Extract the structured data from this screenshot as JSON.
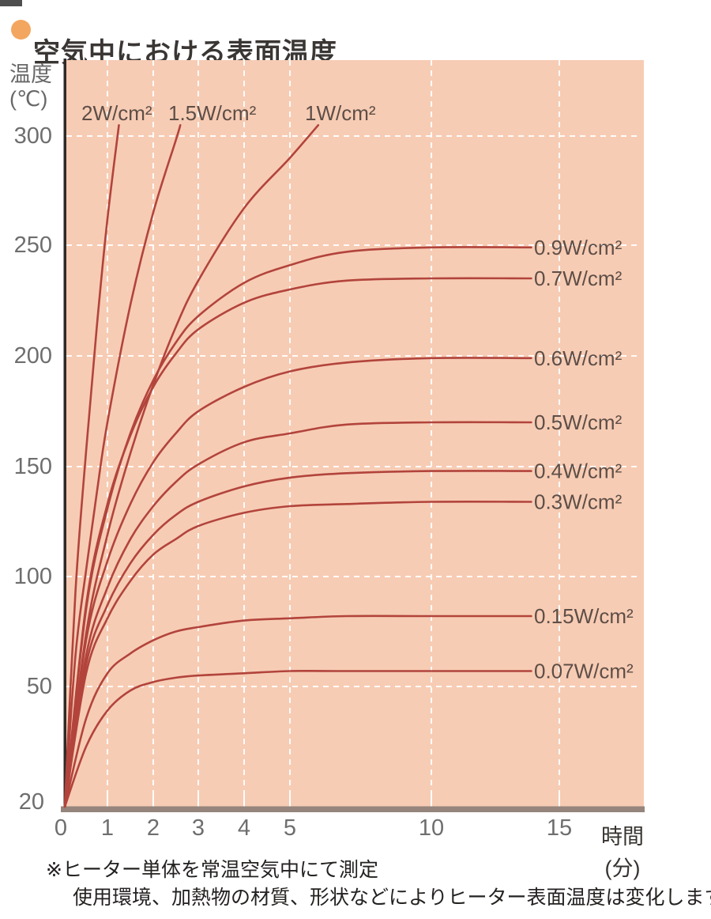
{
  "title": {
    "text": "空気中における表面温度",
    "bullet_color": "#f3a660"
  },
  "y_axis": {
    "unit_line1": "温度",
    "unit_line2": "(℃)",
    "ticks": [
      300,
      250,
      200,
      150,
      100,
      50,
      20
    ]
  },
  "x_axis": {
    "ticks": [
      0,
      1,
      2,
      3,
      4,
      5,
      10,
      15
    ],
    "unit_line1": "時間",
    "unit_line2": "(分)"
  },
  "footnotes": {
    "line1": "※ヒーター単体を常温空気中にて測定",
    "line2": "使用環境、加熱物の材質、形状などによりヒーター表面温度は変化します。"
  },
  "colors": {
    "plot_background_pink": "#f7ccb4",
    "curve_red": "#b2443c",
    "gridline_white": "#ffffff",
    "axis_dark": "#2e2a28",
    "baseline_gray": "#95857c",
    "tick_gray": "#6e6e6e",
    "curve_label_brown": "#5d4e47",
    "title_dark": "#3a3634",
    "bullet_orange": "#f3a660"
  },
  "chart_data": {
    "type": "line",
    "title": "空気中における表面温度",
    "xlabel": "時間(分)",
    "ylabel": "温度(℃)",
    "x_ticks": [
      0,
      1,
      2,
      3,
      4,
      5,
      10,
      15
    ],
    "y_ticks": [
      20,
      50,
      100,
      150,
      200,
      250,
      300
    ],
    "ylim": [
      20,
      305
    ],
    "xlim": [
      0,
      15
    ],
    "grid": "white dashed gridlines on peach background",
    "legend_position": "labels next to each curve (top for 2/1.5/1 W, right for the rest)",
    "x_scale_note": "0–5 min drawn expanded; 5–15 min drawn compressed (non-linear time axis)",
    "y_scale_note": "20–50 ℃ segment drawn expanded near origin",
    "series": [
      {
        "label": "2W/cm²",
        "label_position": "top",
        "points": [
          [
            0,
            20
          ],
          [
            0.25,
            93
          ],
          [
            0.5,
            157
          ],
          [
            0.75,
            213
          ],
          [
            1,
            262
          ],
          [
            1.25,
            305
          ]
        ]
      },
      {
        "label": "1.5W/cm²",
        "label_position": "top",
        "points": [
          [
            0,
            20
          ],
          [
            0.25,
            64
          ],
          [
            0.5,
            103
          ],
          [
            0.75,
            138
          ],
          [
            1,
            170
          ],
          [
            1.5,
            223
          ],
          [
            2,
            265
          ],
          [
            2.5,
            298
          ],
          [
            2.6,
            305
          ]
        ]
      },
      {
        "label": "1W/cm²",
        "label_position": "top",
        "points": [
          [
            0,
            20
          ],
          [
            0.5,
            74
          ],
          [
            1,
            119
          ],
          [
            1.5,
            156
          ],
          [
            2,
            187
          ],
          [
            2.5,
            213
          ],
          [
            3,
            234
          ],
          [
            4,
            267
          ],
          [
            5,
            290
          ],
          [
            6,
            305
          ]
        ]
      },
      {
        "label": "0.9W/cm²",
        "label_position": "right",
        "plateau_c": 249,
        "points": [
          [
            0,
            20
          ],
          [
            0.5,
            85
          ],
          [
            1,
            131
          ],
          [
            1.5,
            165
          ],
          [
            2,
            189
          ],
          [
            2.5,
            206
          ],
          [
            3,
            218
          ],
          [
            4,
            233
          ],
          [
            5,
            241
          ],
          [
            7,
            247
          ],
          [
            10,
            249
          ],
          [
            13.9,
            249
          ]
        ]
      },
      {
        "label": "0.7W/cm²",
        "label_position": "right",
        "plateau_c": 235,
        "points": [
          [
            0,
            20
          ],
          [
            0.5,
            87
          ],
          [
            1,
            133
          ],
          [
            1.5,
            164
          ],
          [
            2,
            186
          ],
          [
            2.5,
            201
          ],
          [
            3,
            212
          ],
          [
            4,
            224
          ],
          [
            5,
            230
          ],
          [
            7,
            234
          ],
          [
            10,
            235
          ],
          [
            13.9,
            235
          ]
        ]
      },
      {
        "label": "0.6W/cm²",
        "label_position": "right",
        "plateau_c": 199,
        "points": [
          [
            0,
            20
          ],
          [
            0.5,
            71
          ],
          [
            1,
            107
          ],
          [
            1.5,
            133
          ],
          [
            2,
            152
          ],
          [
            2.5,
            165
          ],
          [
            3,
            175
          ],
          [
            4,
            186
          ],
          [
            5,
            193
          ],
          [
            7,
            197
          ],
          [
            10,
            199
          ],
          [
            13.9,
            199
          ]
        ]
      },
      {
        "label": "0.5W/cm²",
        "label_position": "right",
        "plateau_c": 170,
        "points": [
          [
            0,
            20
          ],
          [
            0.5,
            64
          ],
          [
            1,
            95
          ],
          [
            1.5,
            117
          ],
          [
            2,
            132
          ],
          [
            2.5,
            143
          ],
          [
            3,
            151
          ],
          [
            4,
            161
          ],
          [
            5,
            165
          ],
          [
            7,
            169
          ],
          [
            10,
            170
          ],
          [
            13.9,
            170
          ]
        ]
      },
      {
        "label": "0.4W/cm²",
        "label_position": "right",
        "plateau_c": 148,
        "points": [
          [
            0,
            20
          ],
          [
            0.5,
            60
          ],
          [
            1,
            87
          ],
          [
            1.5,
            106
          ],
          [
            2,
            119
          ],
          [
            2.5,
            128
          ],
          [
            3,
            134
          ],
          [
            4,
            141
          ],
          [
            5,
            145
          ],
          [
            7,
            147
          ],
          [
            10,
            148
          ],
          [
            13.9,
            148
          ]
        ]
      },
      {
        "label": "0.3W/cm²",
        "label_position": "right",
        "plateau_c": 134,
        "points": [
          [
            0,
            20
          ],
          [
            0.5,
            56
          ],
          [
            1,
            81
          ],
          [
            1.5,
            98
          ],
          [
            2,
            110
          ],
          [
            2.5,
            117
          ],
          [
            3,
            123
          ],
          [
            4,
            129
          ],
          [
            5,
            132
          ],
          [
            7,
            133
          ],
          [
            10,
            134
          ],
          [
            13.9,
            134
          ]
        ]
      },
      {
        "label": "0.15W/cm²",
        "label_position": "right",
        "plateau_c": 82,
        "points": [
          [
            0,
            20
          ],
          [
            0.5,
            42
          ],
          [
            1,
            56
          ],
          [
            1.5,
            65
          ],
          [
            2,
            71
          ],
          [
            2.5,
            75
          ],
          [
            3,
            77
          ],
          [
            4,
            80
          ],
          [
            5,
            81
          ],
          [
            7,
            82
          ],
          [
            10,
            82
          ],
          [
            13.9,
            82
          ]
        ]
      },
      {
        "label": "0.07W/cm²",
        "label_position": "right",
        "plateau_c": 57,
        "points": [
          [
            0,
            20
          ],
          [
            0.5,
            35
          ],
          [
            1,
            44
          ],
          [
            1.5,
            49
          ],
          [
            2,
            52
          ],
          [
            2.5,
            54
          ],
          [
            3,
            55
          ],
          [
            4,
            56
          ],
          [
            5,
            57
          ],
          [
            7,
            57
          ],
          [
            10,
            57
          ],
          [
            13.9,
            57
          ]
        ]
      }
    ]
  }
}
